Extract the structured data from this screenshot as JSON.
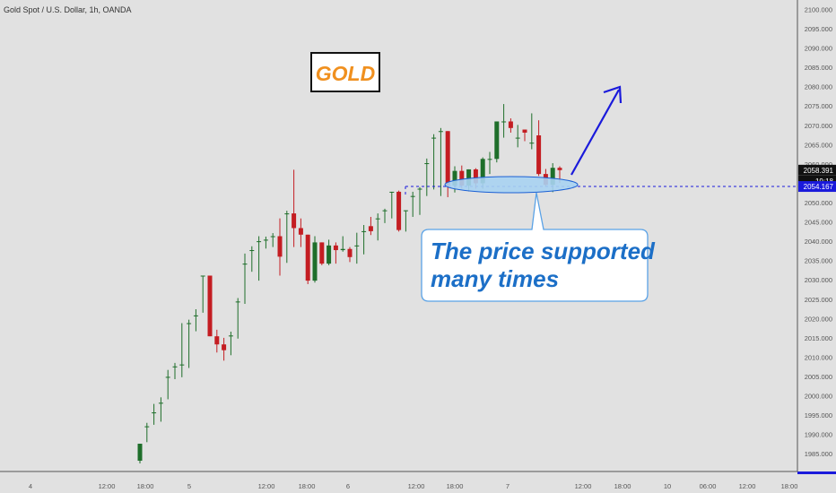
{
  "header": {
    "symbol_title": "Gold Spot / U.S. Dollar, 1h, OANDA"
  },
  "logo_text": "GOLD",
  "callout": {
    "line1": "The price supported",
    "line2": "many times"
  },
  "colors": {
    "bull": "#1e6e2a",
    "bear": "#c41d22",
    "annotation_blue": "#1a1adb",
    "callout_text": "#1c6fc7",
    "ellipse_fill": "#a9d3f2",
    "logo_orange": "#f0901f",
    "background": "#e1e1e1"
  },
  "chart_data": {
    "type": "candlestick",
    "title": "Gold Spot / U.S. Dollar, 1h, OANDA",
    "y_axis_ticks": [
      1985,
      1990,
      1995,
      2000,
      2005,
      2010,
      2015,
      2020,
      2025,
      2030,
      2035,
      2040,
      2045,
      2050,
      2055,
      2060,
      2065,
      2070,
      2075,
      2080,
      2085,
      2090,
      2095,
      2100
    ],
    "y_tick_format": "0.000",
    "ylim": [
      1982.5,
      2101.5
    ],
    "x_axis_labels": [
      "4",
      "12:00",
      "18:00",
      "5",
      "12:00",
      "18:00",
      "6",
      "12:00",
      "18:00",
      "7",
      "12:00",
      "18:00",
      "10",
      "06:00",
      "12:00",
      "18:00"
    ],
    "last_price": 2058.391,
    "last_price_label": "2058.391",
    "countdown_label": "19:18",
    "support_level": 2054.167,
    "support_label": "2054.167",
    "candles": [
      {
        "o": 1983.2,
        "h": 1987.6,
        "l": 1982.5,
        "c": 1987.6
      },
      {
        "o": 1992.1,
        "h": 1993.0,
        "l": 1988.0,
        "c": 1992.1
      },
      {
        "o": 1995.7,
        "h": 1997.9,
        "l": 1992.5,
        "c": 1995.7
      },
      {
        "o": 1998.2,
        "h": 1999.6,
        "l": 1993.3,
        "c": 1998.2
      },
      {
        "o": 2004.9,
        "h": 2006.7,
        "l": 1999.1,
        "c": 2004.9
      },
      {
        "o": 2007.6,
        "h": 2008.5,
        "l": 2004.3,
        "c": 2007.6
      },
      {
        "o": 2008.1,
        "h": 2018.8,
        "l": 2004.8,
        "c": 2008.1
      },
      {
        "o": 2018.8,
        "h": 2019.7,
        "l": 2007.2,
        "c": 2018.8
      },
      {
        "o": 2020.8,
        "h": 2022.4,
        "l": 2016.7,
        "c": 2020.8
      },
      {
        "o": 2031.1,
        "h": 2031.1,
        "l": 2021.5,
        "c": 2031.1
      },
      {
        "o": 2031.1,
        "h": 2031.1,
        "l": 2015.4,
        "c": 2015.4
      },
      {
        "o": 2015.4,
        "h": 2017.1,
        "l": 2011.2,
        "c": 2013.3
      },
      {
        "o": 2013.3,
        "h": 2015.0,
        "l": 2009.1,
        "c": 2011.8
      },
      {
        "o": 2015.6,
        "h": 2016.6,
        "l": 2010.5,
        "c": 2015.6
      },
      {
        "o": 2024.4,
        "h": 2025.3,
        "l": 2014.8,
        "c": 2024.4
      },
      {
        "o": 2034.2,
        "h": 2036.8,
        "l": 2023.8,
        "c": 2034.2
      },
      {
        "o": 2037.7,
        "h": 2038.7,
        "l": 2032.1,
        "c": 2037.7
      },
      {
        "o": 2040.0,
        "h": 2041.3,
        "l": 2029.8,
        "c": 2040.0
      },
      {
        "o": 2040.4,
        "h": 2041.2,
        "l": 2038.1,
        "c": 2040.4
      },
      {
        "o": 2041.3,
        "h": 2042.1,
        "l": 2038.5,
        "c": 2041.3
      },
      {
        "o": 2041.3,
        "h": 2045.9,
        "l": 2031.1,
        "c": 2036.0
      },
      {
        "o": 2047.2,
        "h": 2047.9,
        "l": 2034.4,
        "c": 2047.2
      },
      {
        "o": 2047.2,
        "h": 2058.5,
        "l": 2038.5,
        "c": 2043.4
      },
      {
        "o": 2043.4,
        "h": 2045.9,
        "l": 2038.5,
        "c": 2041.7
      },
      {
        "o": 2041.7,
        "h": 2041.7,
        "l": 2028.9,
        "c": 2029.8
      },
      {
        "o": 2029.8,
        "h": 2041.3,
        "l": 2029.3,
        "c": 2039.7
      },
      {
        "o": 2039.7,
        "h": 2039.7,
        "l": 2033.8,
        "c": 2034.2
      },
      {
        "o": 2034.2,
        "h": 2040.4,
        "l": 2033.8,
        "c": 2038.9
      },
      {
        "o": 2038.9,
        "h": 2039.7,
        "l": 2034.2,
        "c": 2037.7
      },
      {
        "o": 2037.7,
        "h": 2041.3,
        "l": 2037.3,
        "c": 2038.0
      },
      {
        "o": 2038.0,
        "h": 2038.5,
        "l": 2034.6,
        "c": 2035.9
      },
      {
        "o": 2038.9,
        "h": 2042.2,
        "l": 2034.2,
        "c": 2038.9
      },
      {
        "o": 2042.6,
        "h": 2044.2,
        "l": 2036.6,
        "c": 2042.6
      },
      {
        "o": 2043.9,
        "h": 2046.3,
        "l": 2041.6,
        "c": 2042.6
      },
      {
        "o": 2045.9,
        "h": 2047.2,
        "l": 2040.2,
        "c": 2045.9
      },
      {
        "o": 2048.0,
        "h": 2048.4,
        "l": 2044.7,
        "c": 2048.0
      },
      {
        "o": 2052.8,
        "h": 2052.8,
        "l": 2045.9,
        "c": 2052.8
      },
      {
        "o": 2052.8,
        "h": 2053.1,
        "l": 2042.5,
        "c": 2042.9
      },
      {
        "o": 2048.0,
        "h": 2048.0,
        "l": 2042.5,
        "c": 2048.0
      },
      {
        "o": 2051.7,
        "h": 2052.8,
        "l": 2046.3,
        "c": 2051.7
      },
      {
        "o": 2053.6,
        "h": 2054.0,
        "l": 2046.8,
        "c": 2053.6
      },
      {
        "o": 2060.2,
        "h": 2061.4,
        "l": 2051.7,
        "c": 2060.2
      },
      {
        "o": 2066.8,
        "h": 2067.7,
        "l": 2053.4,
        "c": 2066.8
      },
      {
        "o": 2068.5,
        "h": 2069.3,
        "l": 2051.7,
        "c": 2068.5
      },
      {
        "o": 2068.5,
        "h": 2068.5,
        "l": 2051.4,
        "c": 2054.4
      },
      {
        "o": 2054.4,
        "h": 2059.4,
        "l": 2052.6,
        "c": 2058.2
      },
      {
        "o": 2058.2,
        "h": 2059.6,
        "l": 2053.6,
        "c": 2054.4
      },
      {
        "o": 2054.4,
        "h": 2058.6,
        "l": 2052.9,
        "c": 2058.6
      },
      {
        "o": 2058.6,
        "h": 2058.9,
        "l": 2053.6,
        "c": 2055.0
      },
      {
        "o": 2055.0,
        "h": 2061.7,
        "l": 2053.6,
        "c": 2061.3
      },
      {
        "o": 2061.3,
        "h": 2063.1,
        "l": 2057.4,
        "c": 2061.3
      },
      {
        "o": 2061.3,
        "h": 2071.0,
        "l": 2060.4,
        "c": 2071.0
      },
      {
        "o": 2071.0,
        "h": 2075.5,
        "l": 2066.8,
        "c": 2071.0
      },
      {
        "o": 2071.0,
        "h": 2071.8,
        "l": 2068.1,
        "c": 2069.3
      },
      {
        "o": 2066.8,
        "h": 2070.1,
        "l": 2064.3,
        "c": 2066.8
      },
      {
        "o": 2068.9,
        "h": 2068.9,
        "l": 2065.9,
        "c": 2068.1
      },
      {
        "o": 2065.5,
        "h": 2073.1,
        "l": 2063.8,
        "c": 2065.5
      },
      {
        "o": 2067.4,
        "h": 2071.3,
        "l": 2056.9,
        "c": 2057.4
      },
      {
        "o": 2057.4,
        "h": 2058.7,
        "l": 2054.1,
        "c": 2054.6
      },
      {
        "o": 2054.6,
        "h": 2060.2,
        "l": 2052.7,
        "c": 2059.0
      },
      {
        "o": 2059.0,
        "h": 2059.4,
        "l": 2055.1,
        "c": 2058.4
      }
    ]
  }
}
